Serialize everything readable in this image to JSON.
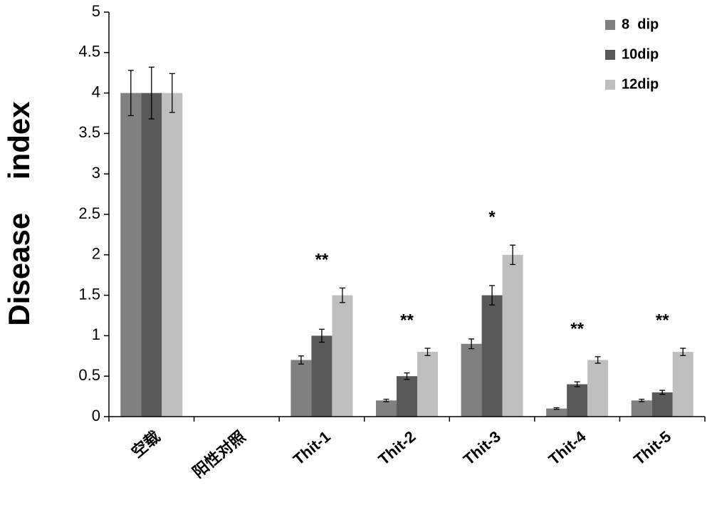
{
  "chart_data": {
    "type": "bar",
    "y_label": "Disease    index",
    "categories": [
      "空载",
      "阳性对照",
      "Thit-1",
      "Thit-2",
      "Thit-3",
      "Thit-4",
      "Thit-5"
    ],
    "series": [
      {
        "name": "8  dip",
        "color": "#808080",
        "values": [
          4,
          0,
          0.7,
          0.2,
          0.9,
          0.1,
          0.2
        ],
        "errors": [
          0.28,
          0,
          0.05,
          0.015,
          0.06,
          0.01,
          0.015
        ]
      },
      {
        "name": "10dip",
        "color": "#595959",
        "values": [
          4,
          0,
          1.0,
          0.5,
          1.5,
          0.4,
          0.3
        ],
        "errors": [
          0.32,
          0,
          0.08,
          0.04,
          0.12,
          0.03,
          0.025
        ]
      },
      {
        "name": "12dip",
        "color": "#bfbfbf",
        "values": [
          4,
          0,
          1.5,
          0.8,
          2.0,
          0.7,
          0.8
        ],
        "errors": [
          0.24,
          0,
          0.09,
          0.045,
          0.12,
          0.04,
          0.045
        ]
      }
    ],
    "significance": [
      null,
      null,
      "**",
      "**",
      "*",
      "**",
      "**"
    ],
    "ylim": [
      0,
      5
    ],
    "yticks": [
      0,
      0.5,
      1,
      1.5,
      2,
      2.5,
      3,
      3.5,
      4,
      4.5,
      5
    ],
    "legend": "top-right"
  }
}
